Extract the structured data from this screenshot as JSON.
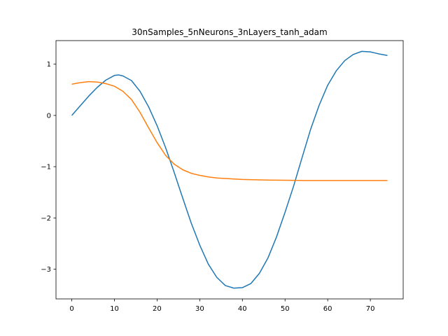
{
  "chart_data": {
    "type": "line",
    "title": "30nSamples_5nNeurons_3nLayers_tanh_adam",
    "xlabel": "",
    "ylabel": "",
    "xlim": [
      -3.7,
      77.7
    ],
    "ylim": [
      -3.58,
      1.46
    ],
    "xticks": [
      0,
      10,
      20,
      30,
      40,
      50,
      60,
      70
    ],
    "xtick_labels": [
      "0",
      "10",
      "20",
      "30",
      "40",
      "50",
      "60",
      "70"
    ],
    "yticks": [
      1,
      0,
      -1,
      -2,
      -3
    ],
    "ytick_labels": [
      "1",
      "0",
      "−1",
      "−2",
      "−3"
    ],
    "grid": false,
    "series": [
      {
        "color": "#1f77b4",
        "x": [
          0,
          2,
          4,
          6,
          8,
          10,
          11,
          12,
          14,
          16,
          18,
          20,
          22,
          24,
          26,
          28,
          30,
          32,
          34,
          36,
          38,
          40,
          42,
          44,
          46,
          48,
          50,
          52,
          54,
          56,
          58,
          60,
          62,
          64,
          66,
          68,
          70,
          71,
          72,
          74
        ],
        "y": [
          0.0,
          0.19,
          0.38,
          0.55,
          0.69,
          0.78,
          0.79,
          0.77,
          0.68,
          0.47,
          0.17,
          -0.2,
          -0.63,
          -1.11,
          -1.61,
          -2.1,
          -2.53,
          -2.9,
          -3.16,
          -3.32,
          -3.37,
          -3.36,
          -3.28,
          -3.08,
          -2.78,
          -2.37,
          -1.89,
          -1.38,
          -0.82,
          -0.27,
          0.2,
          0.59,
          0.87,
          1.07,
          1.19,
          1.25,
          1.24,
          1.22,
          1.2,
          1.17
        ]
      },
      {
        "color": "#ff7f0e",
        "x": [
          0,
          2,
          4,
          6,
          8,
          10,
          12,
          14,
          16,
          18,
          20,
          22,
          24,
          26,
          28,
          30,
          32,
          34,
          36,
          40,
          45,
          50,
          55,
          60,
          65,
          70,
          74
        ],
        "y": [
          0.61,
          0.64,
          0.66,
          0.65,
          0.62,
          0.57,
          0.47,
          0.31,
          0.06,
          -0.24,
          -0.53,
          -0.78,
          -0.95,
          -1.06,
          -1.13,
          -1.17,
          -1.2,
          -1.22,
          -1.23,
          -1.25,
          -1.26,
          -1.265,
          -1.27,
          -1.27,
          -1.27,
          -1.27,
          -1.27
        ]
      }
    ]
  }
}
